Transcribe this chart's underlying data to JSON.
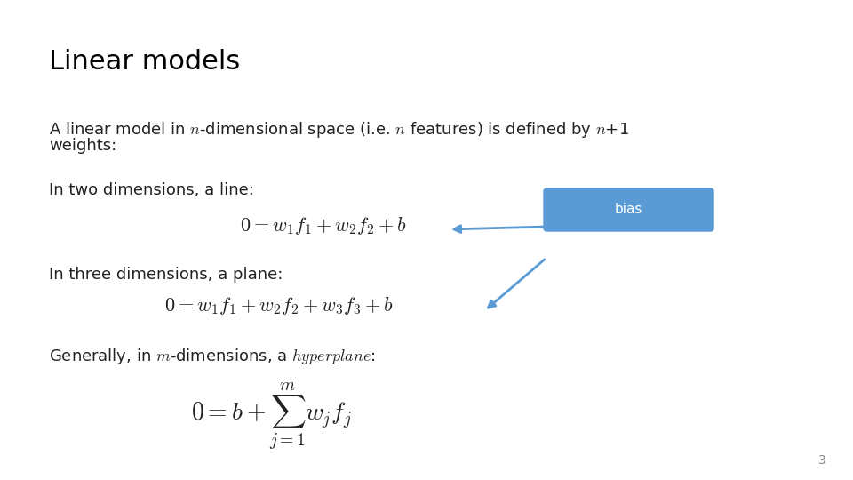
{
  "title": "Linear models",
  "background_color": "#ffffff",
  "title_color": "#000000",
  "title_fontsize": 22,
  "body_fontsize": 13,
  "math_fontsize": 16,
  "text_color": "#222222",
  "bias_box_color": "#5b9bd5",
  "bias_box_text": "bias",
  "bias_text_color": "#ffffff",
  "page_number": "3"
}
